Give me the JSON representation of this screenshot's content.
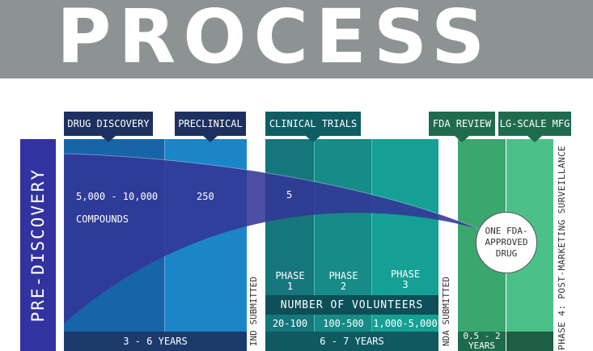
{
  "header": {
    "title": "PROCESS"
  },
  "left_bar": {
    "label": "PRE-DISCOVERY"
  },
  "tabs": {
    "drug_discovery": "DRUG DISCOVERY",
    "preclinical": "PRECLINICAL",
    "clinical_trials": "CLINICAL TRIALS",
    "fda_review": "FDA REVIEW",
    "lg_scale_mfg": "LG-SCALE MFG"
  },
  "compounds": {
    "discovery_count": "5,000 - 10,000",
    "discovery_unit": "COMPOUNDS",
    "preclinical_count": "250",
    "clinical_count": "5"
  },
  "result": {
    "line1": "ONE FDA-",
    "line2": "APPROVED",
    "line3": "DRUG"
  },
  "phases": [
    {
      "line1": "PHASE",
      "line2": "1",
      "volunteers": "20-100"
    },
    {
      "line1": "PHASE",
      "line2": "2",
      "volunteers": "100-500"
    },
    {
      "line1": "PHASE",
      "line2": "3",
      "volunteers": "1,000-5,000"
    }
  ],
  "volunteers_header": "NUMBER OF VOLUNTEERS",
  "durations": {
    "discovery_preclinical": "3 - 6 YEARS",
    "clinical": "6 - 7 YEARS",
    "review_line1": "0.5 - 2",
    "review_line2": "YEARS"
  },
  "vertical_labels": {
    "ind": "IND SUBMITTED",
    "nda": "NDA SUBMITTED",
    "phase4": "PHASE 4: POST-MARKETING SURVEILLANCE"
  },
  "colors": {
    "header_gray": "#8d9293",
    "discovery_blue": "#1765a8",
    "preclinical_blue": "#1b86c7",
    "pre_discovery_purple": "#3232a0",
    "clinical_teal": "#15908a",
    "review_green": "#3aa76f",
    "mfg_green": "#4cc089"
  }
}
